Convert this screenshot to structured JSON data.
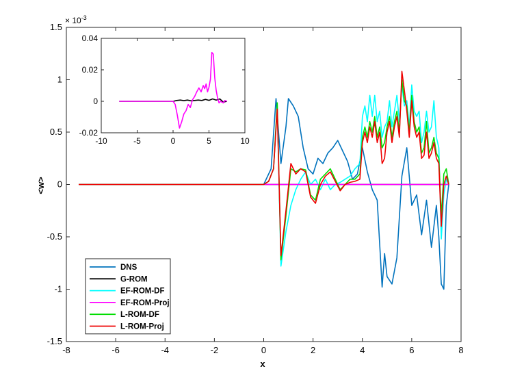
{
  "chart_data": [
    {
      "type": "line",
      "xlabel": "x",
      "ylabel": "<w>",
      "xlim": [
        -8,
        8
      ],
      "ylim": [
        -1.5,
        1.5
      ],
      "exponent_label": "× 10",
      "exponent_power": "-3",
      "xticks": [
        "-8",
        "-6",
        "-4",
        "-2",
        "0",
        "2",
        "4",
        "6",
        "8"
      ],
      "yticks": [
        "-1.5",
        "-1",
        "-0.5",
        "0",
        "0.5",
        "1",
        "1.5"
      ],
      "legend_position": "bottom-left",
      "grid": false,
      "series": [
        {
          "name": "DNS",
          "color": "#0072BD",
          "x": [
            -7.5,
            0,
            0.3,
            0.5,
            0.7,
            0.9,
            1.0,
            1.2,
            1.4,
            1.6,
            1.8,
            2.0,
            2.2,
            2.4,
            2.6,
            2.8,
            3.0,
            3.2,
            3.4,
            3.6,
            3.8,
            4.0,
            4.2,
            4.4,
            4.6,
            4.8,
            4.9,
            5.0,
            5.2,
            5.4,
            5.6,
            5.8,
            6.0,
            6.2,
            6.4,
            6.6,
            6.8,
            7.0,
            7.1,
            7.2,
            7.3,
            7.4,
            7.5
          ],
          "values": [
            0,
            0,
            0.15,
            0.82,
            0.2,
            0.55,
            0.82,
            0.75,
            0.65,
            0.35,
            0.15,
            0.1,
            0.25,
            0.2,
            0.3,
            0.35,
            0.42,
            0.32,
            0.22,
            0.05,
            0.1,
            0.35,
            0.12,
            -0.05,
            -0.15,
            -0.98,
            -0.66,
            -0.88,
            -0.95,
            -0.7,
            0.08,
            0.35,
            -0.2,
            -0.1,
            -0.48,
            -0.15,
            -0.6,
            -0.2,
            -0.5,
            -0.95,
            -1.0,
            -0.2,
            0
          ]
        },
        {
          "name": "G-ROM",
          "color": "#000000",
          "x": [
            -7.5,
            0,
            7.5
          ],
          "values": [
            0,
            0,
            0
          ]
        },
        {
          "name": "EF-ROM-DF",
          "color": "#00FFFF",
          "x": [
            -7.5,
            0,
            0.2,
            0.4,
            0.55,
            0.7,
            0.9,
            1.1,
            1.3,
            1.5,
            1.7,
            1.9,
            2.1,
            2.3,
            2.5,
            2.7,
            2.9,
            3.1,
            3.3,
            3.5,
            3.7,
            3.9,
            4.0,
            4.1,
            4.2,
            4.3,
            4.4,
            4.5,
            4.6,
            4.7,
            4.8,
            4.9,
            5.0,
            5.1,
            5.2,
            5.3,
            5.4,
            5.5,
            5.6,
            5.7,
            5.8,
            5.9,
            6.0,
            6.1,
            6.2,
            6.3,
            6.4,
            6.5,
            6.6,
            6.7,
            6.8,
            6.9,
            7.0,
            7.1,
            7.2,
            7.3,
            7.4,
            7.5
          ],
          "values": [
            0,
            0,
            0.03,
            0.15,
            0.75,
            -0.78,
            -0.45,
            -0.2,
            -0.05,
            0.05,
            0.12,
            0.0,
            0.05,
            -0.05,
            0.05,
            -0.05,
            0.0,
            0.02,
            0.05,
            0.08,
            0.15,
            0.2,
            0.65,
            0.75,
            0.6,
            0.85,
            0.65,
            0.85,
            0.6,
            0.7,
            0.45,
            0.55,
            0.6,
            0.8,
            0.55,
            0.7,
            0.85,
            0.6,
            0.95,
            0.75,
            0.8,
            0.55,
            0.95,
            0.7,
            0.65,
            0.7,
            0.4,
            0.5,
            0.7,
            0.5,
            0.55,
            0.8,
            0.45,
            0.35,
            -0.52,
            -0.1,
            0.05,
            0
          ]
        },
        {
          "name": "EF-ROM-Proj",
          "color": "#FF00FF",
          "x": [
            -7.5,
            0,
            7.5
          ],
          "values": [
            0,
            0,
            0
          ]
        },
        {
          "name": "L-ROM-DF",
          "color": "#00DD00",
          "x": [
            -7.5,
            0,
            0.2,
            0.4,
            0.55,
            0.7,
            0.9,
            1.1,
            1.3,
            1.5,
            1.7,
            1.9,
            2.1,
            2.3,
            2.5,
            2.7,
            2.9,
            3.1,
            3.3,
            3.5,
            3.7,
            3.9,
            4.0,
            4.1,
            4.2,
            4.3,
            4.4,
            4.5,
            4.6,
            4.7,
            4.8,
            4.9,
            5.0,
            5.1,
            5.2,
            5.3,
            5.4,
            5.5,
            5.6,
            5.7,
            5.8,
            5.9,
            6.0,
            6.1,
            6.2,
            6.3,
            6.4,
            6.5,
            6.6,
            6.7,
            6.8,
            6.9,
            7.0,
            7.1,
            7.2,
            7.3,
            7.4,
            7.5
          ],
          "values": [
            0,
            0,
            0.03,
            0.15,
            0.78,
            -0.72,
            -0.3,
            0.15,
            0.12,
            0.15,
            0.14,
            -0.1,
            -0.15,
            0.05,
            0.1,
            0.15,
            0.05,
            -0.05,
            0.0,
            0.05,
            0.05,
            0.1,
            0.45,
            0.55,
            0.45,
            0.6,
            0.5,
            0.65,
            0.45,
            0.55,
            0.35,
            0.4,
            0.55,
            0.65,
            0.45,
            0.6,
            0.7,
            0.5,
            1.0,
            0.8,
            0.75,
            0.5,
            0.85,
            0.6,
            0.5,
            0.55,
            0.3,
            0.35,
            0.6,
            0.3,
            0.35,
            0.45,
            0.3,
            0.25,
            -0.3,
            0.1,
            0.15,
            0
          ]
        },
        {
          "name": "L-ROM-Proj",
          "color": "#EE0000",
          "x": [
            -7.5,
            0,
            0.2,
            0.4,
            0.55,
            0.7,
            0.9,
            1.1,
            1.3,
            1.5,
            1.7,
            1.9,
            2.1,
            2.3,
            2.5,
            2.7,
            2.9,
            3.1,
            3.3,
            3.5,
            3.7,
            3.9,
            4.0,
            4.1,
            4.2,
            4.3,
            4.4,
            4.5,
            4.6,
            4.7,
            4.8,
            4.9,
            5.0,
            5.1,
            5.2,
            5.3,
            5.4,
            5.5,
            5.6,
            5.7,
            5.8,
            5.9,
            6.0,
            6.1,
            6.2,
            6.3,
            6.4,
            6.5,
            6.6,
            6.7,
            6.8,
            6.9,
            7.0,
            7.1,
            7.2,
            7.3,
            7.4,
            7.5
          ],
          "values": [
            0,
            0,
            0.03,
            0.15,
            0.72,
            -0.68,
            -0.25,
            0.2,
            0.1,
            0.15,
            0.12,
            -0.12,
            -0.18,
            0.0,
            0.08,
            0.12,
            0.03,
            -0.06,
            0.0,
            0.02,
            0.03,
            0.05,
            0.4,
            0.5,
            0.4,
            0.55,
            0.45,
            0.6,
            0.4,
            0.5,
            0.2,
            0.25,
            0.5,
            0.6,
            0.4,
            0.55,
            0.65,
            0.45,
            1.08,
            0.9,
            0.7,
            0.45,
            0.8,
            0.55,
            0.45,
            0.5,
            0.25,
            0.28,
            0.5,
            0.25,
            0.3,
            0.4,
            0.25,
            0.2,
            -0.4,
            0.0,
            0.08,
            0
          ]
        }
      ]
    },
    {
      "type": "line",
      "xlim": [
        -10,
        10
      ],
      "ylim": [
        -0.02,
        0.04
      ],
      "xticks": [
        "-10",
        "-5",
        "0",
        "5",
        "10"
      ],
      "yticks": [
        "-0.02",
        "0",
        "0.02",
        "0.04"
      ],
      "series": [
        {
          "name": "G-ROM",
          "color": "#000000",
          "x": [
            -7.5,
            0,
            0.5,
            1.0,
            1.5,
            2.0,
            2.5,
            3.0,
            3.5,
            4.0,
            4.5,
            5.0,
            5.5,
            6.0,
            6.5,
            7.0,
            7.5
          ],
          "values": [
            0,
            0,
            0.0005,
            0.0008,
            0.0004,
            0.0008,
            0.0003,
            0.0005,
            0.0008,
            0.0005,
            0.0012,
            0.0006,
            0.0015,
            0.0008,
            0.0015,
            -0.0005,
            0
          ]
        },
        {
          "name": "EF-ROM-Proj",
          "color": "#FF00FF",
          "x": [
            -7.5,
            0,
            0.3,
            0.6,
            0.9,
            1.2,
            1.5,
            1.8,
            2.1,
            2.4,
            2.7,
            3.0,
            3.3,
            3.6,
            3.9,
            4.2,
            4.4,
            4.6,
            4.8,
            5.0,
            5.2,
            5.4,
            5.6,
            5.8,
            6.0,
            6.2,
            6.4,
            6.6,
            6.8,
            7.0,
            7.2,
            7.5
          ],
          "values": [
            0,
            0,
            -0.002,
            -0.009,
            -0.017,
            -0.013,
            -0.008,
            -0.006,
            -0.002,
            -0.004,
            0.001,
            0.003,
            0.006,
            0.0085,
            0.006,
            0.01,
            0.008,
            0.011,
            0.006,
            0.009,
            0.014,
            0.031,
            0.03,
            0.015,
            0.007,
            0.002,
            -0.001,
            0.0,
            -0.0005,
            -0.001,
            0.0005,
            0
          ]
        }
      ]
    }
  ]
}
